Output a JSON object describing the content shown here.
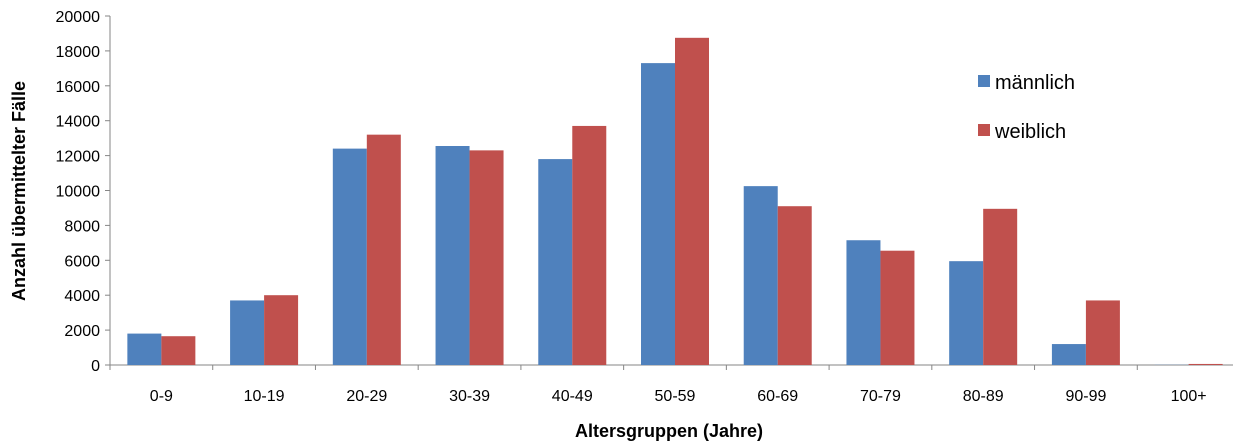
{
  "chart_data": {
    "type": "bar",
    "title": "",
    "xlabel": "Altersgruppen (Jahre)",
    "ylabel": "Anzahl übermittelter Fälle",
    "categories": [
      "0-9",
      "10-19",
      "20-29",
      "30-39",
      "40-49",
      "50-59",
      "60-69",
      "70-79",
      "80-89",
      "90-99",
      "100+"
    ],
    "series": [
      {
        "name": "männlich",
        "color": "#4F81BD",
        "values": [
          1800,
          3700,
          12400,
          12550,
          11800,
          17300,
          10250,
          7150,
          5950,
          1200,
          10
        ]
      },
      {
        "name": "weiblich",
        "color": "#C0504D",
        "values": [
          1650,
          4000,
          13200,
          12300,
          13700,
          18750,
          9100,
          6550,
          8950,
          3700,
          60
        ]
      }
    ],
    "ylim": [
      0,
      20000
    ],
    "yticks": [
      0,
      2000,
      4000,
      6000,
      8000,
      10000,
      12000,
      14000,
      16000,
      18000,
      20000
    ],
    "grid": false,
    "legend_position": "top-right"
  }
}
